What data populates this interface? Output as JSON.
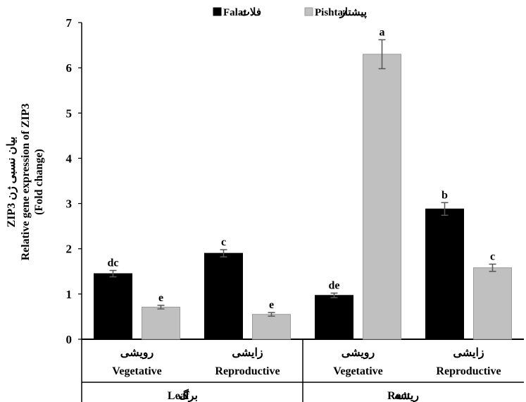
{
  "chart_data": {
    "type": "bar",
    "ylabel_lines": [
      "ZIP3 بیان نسبی ژن",
      "Relative gene expression of ZIP3",
      "(Fold change)"
    ],
    "ylim": [
      0,
      7
    ],
    "yticks": [
      0,
      1,
      2,
      3,
      4,
      5,
      6,
      7
    ],
    "legend_placement": "top",
    "categories": [
      {
        "fa": "رویشی",
        "en": "Vegetative"
      },
      {
        "fa": "زایشی",
        "en": "Reproductive"
      },
      {
        "fa": "رویشی",
        "en": "Vegetative"
      },
      {
        "fa": "زایشی",
        "en": "Reproductive"
      }
    ],
    "groups": [
      {
        "en": "Leaf",
        "fa": "برگ",
        "span": [
          0,
          1
        ]
      },
      {
        "en": "Root",
        "fa": "ریشه",
        "span": [
          2,
          3
        ]
      }
    ],
    "series": [
      {
        "name_en": "Falat",
        "name_fa": "فلات",
        "color": "#000000",
        "values": [
          1.45,
          1.9,
          0.97,
          2.88
        ],
        "errors": [
          0.07,
          0.08,
          0.05,
          0.14
        ],
        "labels": [
          "dc",
          "c",
          "de",
          "b"
        ]
      },
      {
        "name_en": "Pishtaz",
        "name_fa": "پیشتاز",
        "color": "#c0c0c0",
        "values": [
          0.71,
          0.55,
          6.3,
          1.58
        ],
        "errors": [
          0.04,
          0.04,
          0.32,
          0.08
        ],
        "labels": [
          "e",
          "e",
          "a",
          "c"
        ]
      }
    ]
  }
}
